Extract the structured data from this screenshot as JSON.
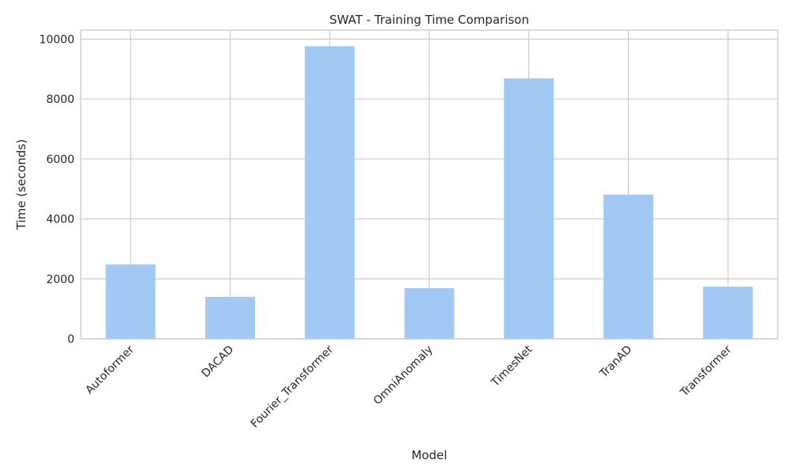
{
  "chart_data": {
    "type": "bar",
    "title": "SWAT - Training Time Comparison",
    "xlabel": "Model",
    "ylabel": "Time (seconds)",
    "categories": [
      "Autoformer",
      "DACAD",
      "Fourier_Transformer",
      "OmniAnomaly",
      "TimesNet",
      "TranAD",
      "Transformer"
    ],
    "values": [
      2480,
      1400,
      9760,
      1690,
      8690,
      4810,
      1740
    ],
    "ylim": [
      0,
      10300
    ],
    "yticks": [
      0,
      2000,
      4000,
      6000,
      8000,
      10000
    ],
    "grid": true,
    "legend": "none",
    "colors": {
      "bar": "#a1c9f4",
      "grid": "#cccccc",
      "frame": "#cccccc",
      "text": "#262626"
    }
  }
}
